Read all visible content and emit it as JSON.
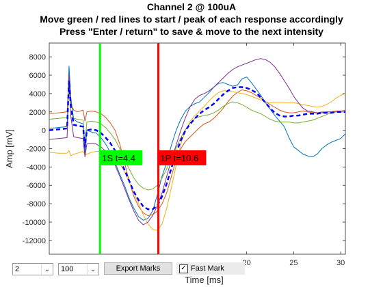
{
  "header": {
    "line1": "Channel 2 @ 100uA",
    "line2": "Move green / red lines to start / peak of each response accordingly",
    "line3": "Press \"Enter / return\" to save & move to the next intensity"
  },
  "controls": {
    "channel_select": "2",
    "intensity_select": "100",
    "export_label": "Export Marks",
    "fast_mark_label": "Fast Mark",
    "fast_mark_checked": true
  },
  "chart_data": {
    "type": "line",
    "xlabel": "Time [ms]",
    "ylabel": "Amp [mV]",
    "xlim": [
      -1,
      30.5
    ],
    "ylim": [
      -13500,
      9500
    ],
    "xticks": [
      20,
      25,
      30
    ],
    "yticks": [
      8000,
      6000,
      4000,
      2000,
      0,
      -2000,
      -4000,
      -6000,
      -8000,
      -10000,
      -12000
    ],
    "ytick_labels": [
      "8000",
      "6000",
      "4000",
      "2000",
      "0",
      "-2000",
      "-4000",
      "-6000",
      "-8000",
      "-10000",
      "-12000"
    ],
    "colors": {
      "start_marker": "#00ff00",
      "peak_marker": "#ff0000",
      "mean_trace": "#0000ff"
    },
    "markers": [
      {
        "name": "1S",
        "label": "1S t=4.4",
        "x": 4.4,
        "color": "#00ff00",
        "label_y": -3000
      },
      {
        "name": "1P",
        "label": "1P t=10.6",
        "x": 10.6,
        "color": "#ff0000",
        "label_y": -3000
      }
    ],
    "series": [
      {
        "color": "#0072bd",
        "x": [
          -1,
          0,
          0.9,
          1.1,
          1.3,
          1.6,
          2,
          2.6,
          2.8,
          3,
          3.5,
          4,
          4.5,
          5,
          5.5,
          6,
          6.5,
          7,
          7.5,
          8,
          8.5,
          9,
          9.5,
          10,
          10.5,
          11,
          11.5,
          12,
          12.5,
          13,
          13.5,
          14,
          14.5,
          15,
          15.5,
          16,
          16.5,
          17,
          17.5,
          18,
          18.5,
          19,
          19.5,
          20,
          20.5,
          21,
          21.5,
          22,
          22.5,
          23,
          23.5,
          24,
          24.5,
          25,
          25.5,
          26,
          26.5,
          27,
          27.5,
          28,
          28.5,
          29,
          29.5,
          30,
          30.5
        ],
        "y": [
          200,
          300,
          400,
          7000,
          3500,
          1200,
          900,
          700,
          -2500,
          0,
          -200,
          -300,
          -800,
          -1500,
          -2400,
          -3500,
          -4800,
          -6000,
          -7400,
          -8500,
          -9400,
          -9800,
          -9600,
          -8800,
          -7000,
          -5000,
          -3500,
          -1600,
          0,
          1200,
          2100,
          2600,
          2900,
          3100,
          3600,
          4100,
          4700,
          5100,
          5200,
          5000,
          4800,
          4900,
          5600,
          5800,
          5200,
          4500,
          3800,
          3000,
          2300,
          1600,
          1000,
          400,
          -800,
          -1800,
          -2200,
          -2600,
          -2800,
          -2900,
          -2600,
          -2000,
          -1600,
          -1300,
          -1100,
          -900,
          -400
        ]
      },
      {
        "color": "#d95319",
        "x": [
          -1,
          0,
          0.9,
          1.1,
          1.3,
          1.6,
          2,
          2.6,
          2.8,
          3,
          3.5,
          4,
          4.5,
          5,
          5.5,
          6,
          6.5,
          7,
          7.5,
          8,
          8.5,
          9,
          9.5,
          10,
          10.5,
          11,
          11.5,
          12,
          12.5,
          13,
          13.5,
          14,
          14.5,
          15,
          15.5,
          16,
          16.5,
          17,
          17.5,
          18,
          18.5,
          19,
          19.5,
          20,
          20.5,
          21,
          21.5,
          22,
          22.5,
          23,
          23.5,
          24,
          24.5,
          25,
          25.5,
          26,
          26.5,
          27,
          27.5,
          28,
          28.5,
          29,
          29.5,
          30,
          30.5
        ],
        "y": [
          1800,
          1900,
          2000,
          6000,
          2800,
          2200,
          2000,
          2200,
          1000,
          2000,
          2100,
          2000,
          1800,
          1400,
          800,
          0,
          -1500,
          -3500,
          -5500,
          -7200,
          -8300,
          -9000,
          -9300,
          -9200,
          -8800,
          -8000,
          -6800,
          -5000,
          -3200,
          -2000,
          -1200,
          -700,
          -200,
          300,
          700,
          900,
          1300,
          1800,
          2400,
          3100,
          3700,
          4100,
          4400,
          4300,
          4100,
          3800,
          3500,
          3100,
          2800,
          2500,
          2200,
          2000,
          1900,
          1900,
          2000,
          2100,
          2000,
          1900,
          1900,
          2000,
          2000,
          2000,
          2100,
          2100,
          2200
        ]
      },
      {
        "color": "#edb120",
        "x": [
          -1,
          0,
          0.9,
          1.1,
          1.3,
          1.6,
          2,
          2.6,
          2.8,
          3,
          3.5,
          4,
          4.5,
          5,
          5.5,
          6,
          6.5,
          7,
          7.5,
          8,
          8.5,
          9,
          9.5,
          10,
          10.5,
          11,
          11.5,
          12,
          12.5,
          13,
          13.5,
          14,
          14.5,
          15,
          15.5,
          16,
          16.5,
          17,
          17.5,
          18,
          18.5,
          19,
          19.5,
          20,
          20.5,
          21,
          21.5,
          22,
          22.5,
          23,
          23.5,
          24,
          24.5,
          25,
          25.5,
          26,
          26.5,
          27,
          27.5,
          28,
          28.5,
          29,
          29.5,
          30,
          30.5
        ],
        "y": [
          -2400,
          -2500,
          -2500,
          -2200,
          -2800,
          -2600,
          -2500,
          -2300,
          -2700,
          -2600,
          -2400,
          -2300,
          -2300,
          -2400,
          -2600,
          -3000,
          -3600,
          -4500,
          -5600,
          -6800,
          -8000,
          -9200,
          -10200,
          -10800,
          -10900,
          -10200,
          -8500,
          -6200,
          -3800,
          -1500,
          0,
          1000,
          1600,
          2100,
          2600,
          3200,
          3700,
          4100,
          4300,
          4300,
          4200,
          4100,
          4000,
          3900,
          3700,
          3500,
          3300,
          3100,
          3000,
          3000,
          3000,
          3000,
          3000,
          3000,
          2900,
          2800,
          2700,
          2600,
          2500,
          2600,
          2800,
          3100,
          3500,
          3800,
          4000
        ]
      },
      {
        "color": "#7e2f8e",
        "x": [
          -1,
          0,
          0.9,
          1.1,
          1.3,
          1.6,
          2,
          2.6,
          2.8,
          3,
          3.5,
          4,
          4.5,
          5,
          5.5,
          6,
          6.5,
          7,
          7.5,
          8,
          8.5,
          9,
          9.5,
          10,
          10.5,
          11,
          11.5,
          12,
          12.5,
          13,
          13.5,
          14,
          14.5,
          15,
          15.5,
          16,
          16.5,
          17,
          17.5,
          18,
          18.5,
          19,
          19.5,
          20,
          20.5,
          21,
          21.5,
          22,
          22.5,
          23,
          23.5,
          24,
          24.5,
          25,
          25.5,
          26,
          26.5,
          27,
          27.5,
          28,
          28.5,
          29,
          29.5,
          30,
          30.5
        ],
        "y": [
          -1000,
          -900,
          -800,
          6000,
          1500,
          -700,
          -800,
          -900,
          -2900,
          -1500,
          -1400,
          -1500,
          -1800,
          -2300,
          -2900,
          -3800,
          -5000,
          -6300,
          -7600,
          -8800,
          -9800,
          -10300,
          -10000,
          -9300,
          -8200,
          -6800,
          -5000,
          -3200,
          -1600,
          0,
          1400,
          2600,
          3400,
          3800,
          4000,
          4300,
          4700,
          5200,
          5700,
          6200,
          6600,
          6900,
          7100,
          7300,
          7500,
          7700,
          7800,
          7700,
          7400,
          6900,
          6200,
          5400,
          4600,
          3700,
          3000,
          2400,
          2100,
          2000,
          1900,
          1900,
          2000,
          2000,
          2000,
          2000,
          2000
        ]
      },
      {
        "color": "#77ac30",
        "x": [
          -1,
          0,
          0.9,
          1.1,
          1.3,
          1.6,
          2,
          2.6,
          2.8,
          3,
          3.5,
          4,
          4.5,
          5,
          5.5,
          6,
          6.5,
          7,
          7.5,
          8,
          8.5,
          9,
          9.5,
          10,
          10.5,
          11,
          11.5,
          12,
          12.5,
          13,
          13.5,
          14,
          14.5,
          15,
          15.5,
          16,
          16.5,
          17,
          17.5,
          18,
          18.5,
          19,
          19.5,
          20,
          20.5,
          21,
          21.5,
          22,
          22.5,
          23,
          23.5,
          24,
          24.5,
          25,
          25.5,
          26,
          26.5,
          27,
          27.5,
          28,
          28.5,
          29,
          29.5,
          30,
          30.5
        ],
        "y": [
          1200,
          1300,
          1400,
          4800,
          2000,
          1300,
          1200,
          1100,
          -1500,
          900,
          1000,
          900,
          700,
          300,
          -300,
          -1000,
          -2000,
          -3100,
          -4200,
          -5200,
          -5900,
          -6300,
          -6500,
          -6400,
          -6000,
          -5200,
          -4200,
          -3000,
          -1900,
          -800,
          100,
          800,
          1300,
          1500,
          1600,
          1700,
          1900,
          2200,
          2600,
          2900,
          3100,
          3000,
          2800,
          2500,
          2200,
          2000,
          1800,
          1500,
          1200,
          1000,
          900,
          900,
          900,
          800,
          800,
          900,
          1000,
          1100,
          1300,
          1500,
          1700,
          1900,
          2000,
          2000,
          2000
        ]
      },
      {
        "color": "#0000ff",
        "dashed": true,
        "x": [
          -1,
          0,
          0.9,
          1.1,
          1.3,
          1.6,
          2,
          2.6,
          2.8,
          3,
          3.5,
          4,
          4.5,
          5,
          5.5,
          6,
          6.5,
          7,
          7.5,
          8,
          8.5,
          9,
          9.5,
          10,
          10.5,
          11,
          11.5,
          12,
          12.5,
          13,
          13.5,
          14,
          14.5,
          15,
          15.5,
          16,
          16.5,
          17,
          17.5,
          18,
          18.5,
          19,
          19.5,
          20,
          20.5,
          21,
          21.5,
          22,
          22.5,
          23,
          23.5,
          24,
          24.5,
          25,
          25.5,
          26,
          26.5,
          27,
          27.5,
          28,
          28.5,
          29,
          29.5,
          30,
          30.5
        ],
        "y": [
          0,
          100,
          200,
          5400,
          2600,
          600,
          500,
          400,
          -1800,
          0,
          100,
          0,
          -300,
          -800,
          -1400,
          -2200,
          -3200,
          -4300,
          -5500,
          -6700,
          -7600,
          -8300,
          -8600,
          -8600,
          -8200,
          -7200,
          -5800,
          -4100,
          -2500,
          -1100,
          0,
          700,
          1300,
          1800,
          2200,
          2500,
          2900,
          3400,
          3900,
          4300,
          4600,
          4700,
          4700,
          4600,
          4400,
          4100,
          3600,
          3000,
          2400,
          1900,
          1600,
          1500,
          1500,
          1600,
          1600,
          1700,
          1800,
          1800,
          1800,
          1900,
          1900,
          1900,
          2000,
          2000,
          2000
        ]
      }
    ]
  }
}
